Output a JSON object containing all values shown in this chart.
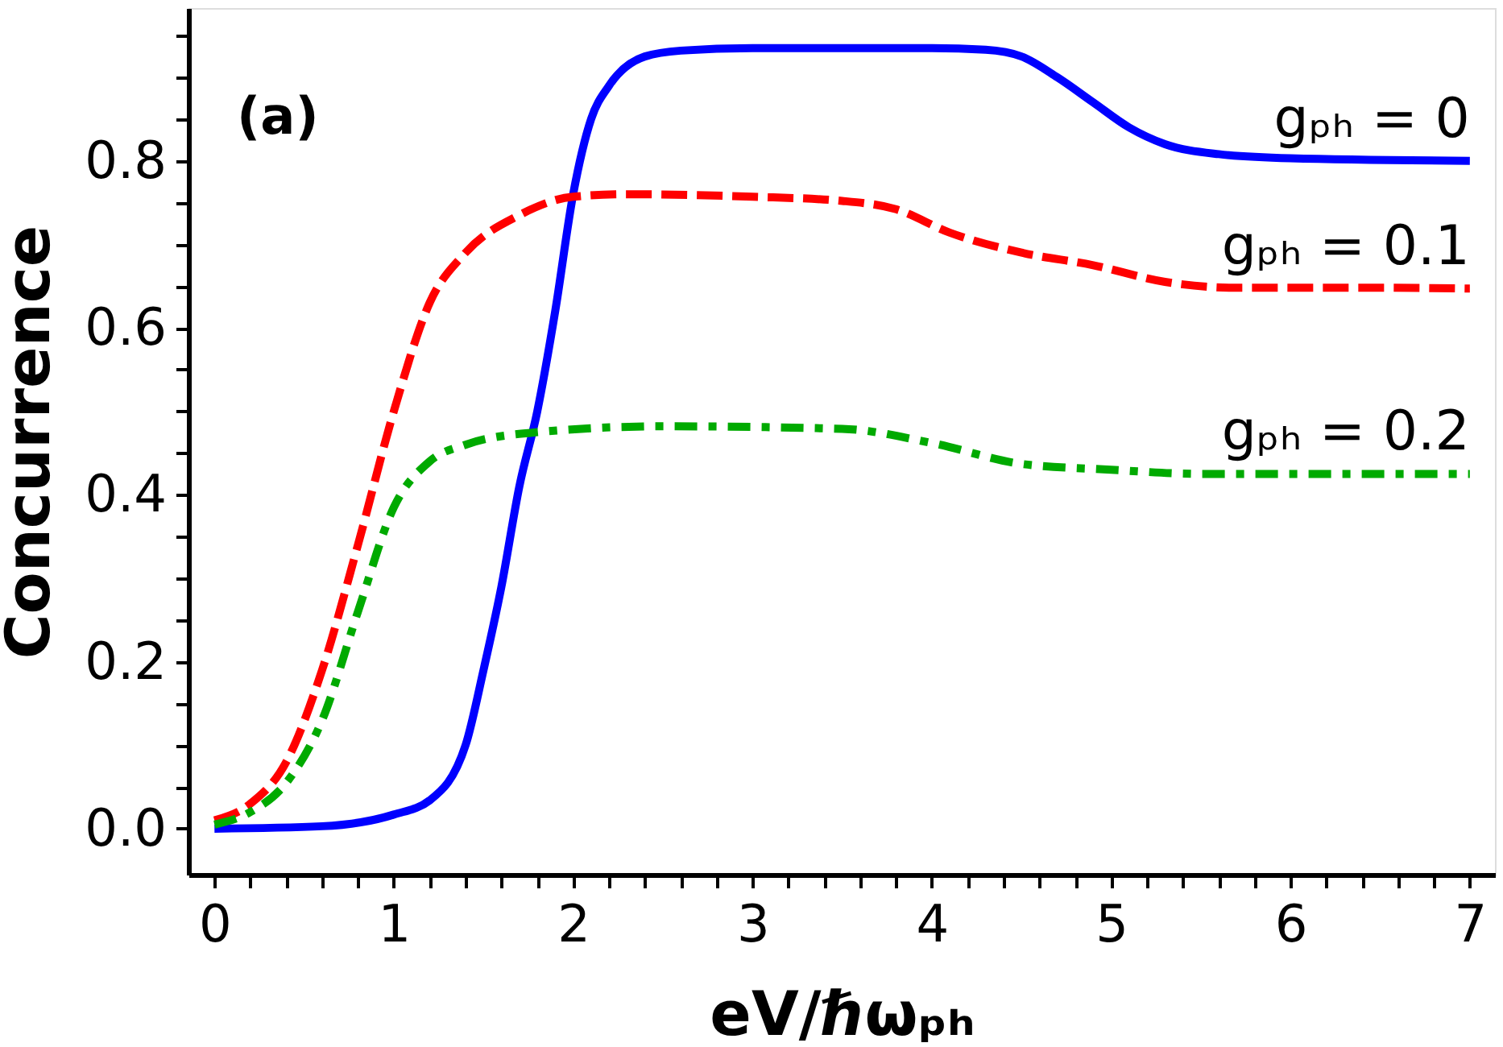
{
  "chart_data": {
    "type": "line",
    "xlabel": "eV/ℏωₚₕ",
    "ylabel": "Concurrence",
    "annotations": [
      "(a)"
    ],
    "xlim": [
      -0.145,
      7.14
    ],
    "ylim": [
      -0.055,
      0.983
    ],
    "xticks": [
      0,
      {
        "value": 0.2,
        "label": null
      },
      {
        "value": 0.4,
        "label": null
      },
      {
        "value": 0.6,
        "label": null
      },
      {
        "value": 0.8,
        "label": null
      },
      1,
      {
        "value": 1.2,
        "label": null
      },
      {
        "value": 1.4,
        "label": null
      },
      {
        "value": 1.6,
        "label": null
      },
      {
        "value": 1.8,
        "label": null
      },
      2,
      {
        "value": 2.2,
        "label": null
      },
      {
        "value": 2.4,
        "label": null
      },
      {
        "value": 2.6,
        "label": null
      },
      {
        "value": 2.8,
        "label": null
      },
      3,
      {
        "value": 3.2,
        "label": null
      },
      {
        "value": 3.4,
        "label": null
      },
      {
        "value": 3.6,
        "label": null
      },
      {
        "value": 3.8,
        "label": null
      },
      4,
      {
        "value": 4.2,
        "label": null
      },
      {
        "value": 4.4,
        "label": null
      },
      {
        "value": 4.6,
        "label": null
      },
      {
        "value": 4.8,
        "label": null
      },
      5,
      {
        "value": 5.2,
        "label": null
      },
      {
        "value": 5.4,
        "label": null
      },
      {
        "value": 5.6,
        "label": null
      },
      {
        "value": 5.8,
        "label": null
      },
      6,
      {
        "value": 6.2,
        "label": null
      },
      {
        "value": 6.4,
        "label": null
      },
      {
        "value": 6.6,
        "label": null
      },
      {
        "value": 6.8,
        "label": null
      },
      7
    ],
    "yticks": [
      {
        "value": 0,
        "label": "0.0"
      },
      {
        "value": 0.05,
        "label": null
      },
      {
        "value": 0.1,
        "label": null
      },
      {
        "value": 0.15,
        "label": null
      },
      0.2,
      {
        "value": 0.25,
        "label": null
      },
      {
        "value": 0.3,
        "label": null
      },
      {
        "value": 0.35,
        "label": null
      },
      0.4,
      {
        "value": 0.45,
        "label": null
      },
      {
        "value": 0.5,
        "label": null
      },
      {
        "value": 0.55,
        "label": null
      },
      0.6,
      {
        "value": 0.65,
        "label": null
      },
      {
        "value": 0.7,
        "label": null
      },
      {
        "value": 0.75,
        "label": null
      },
      0.8,
      {
        "value": 0.85,
        "label": null
      },
      {
        "value": 0.9,
        "label": null
      },
      {
        "value": 0.95,
        "label": null
      }
    ],
    "grid": false,
    "marker": "none",
    "series": [
      {
        "name": "gₚₕ = 0",
        "color": "#0000ff",
        "line_style": "solid",
        "x": [
          0,
          0.6,
          1.0,
          1.2,
          1.4,
          1.5,
          1.6,
          1.7,
          1.8,
          1.9,
          2.0,
          2.1,
          2.2,
          2.4,
          2.6,
          3.0,
          4.0,
          4.3,
          4.5,
          4.7,
          4.9,
          5.1,
          5.3,
          5.6,
          6.0,
          7.0
        ],
        "values": [
          0.0,
          0.003,
          0.017,
          0.034,
          0.1,
          0.19,
          0.29,
          0.41,
          0.5,
          0.62,
          0.76,
          0.85,
          0.89,
          0.925,
          0.932,
          0.935,
          0.935,
          0.933,
          0.925,
          0.9,
          0.87,
          0.84,
          0.82,
          0.808,
          0.803,
          0.8
        ]
      },
      {
        "name": "gₚₕ = 0.1",
        "color": "#ff0000",
        "line_style": "dashed",
        "x": [
          0,
          0.2,
          0.4,
          0.6,
          0.8,
          1.0,
          1.2,
          1.4,
          1.7,
          2.0,
          2.3,
          3.0,
          3.5,
          3.8,
          4.1,
          4.5,
          4.9,
          5.3,
          5.7,
          6.5,
          7.0
        ],
        "values": [
          0.01,
          0.03,
          0.08,
          0.19,
          0.34,
          0.5,
          0.63,
          0.69,
          0.735,
          0.757,
          0.76,
          0.757,
          0.752,
          0.742,
          0.714,
          0.69,
          0.675,
          0.655,
          0.648,
          0.648,
          0.647
        ]
      },
      {
        "name": "gₚₕ = 0.2",
        "color": "#00aa00",
        "line_style": "dashdot",
        "x": [
          0,
          0.2,
          0.4,
          0.6,
          0.8,
          1.0,
          1.2,
          1.4,
          1.8,
          2.5,
          3.5,
          4.0,
          4.5,
          5.0,
          5.5,
          6.0,
          7.0
        ],
        "values": [
          0.005,
          0.02,
          0.055,
          0.13,
          0.26,
          0.385,
          0.44,
          0.46,
          0.475,
          0.482,
          0.479,
          0.462,
          0.437,
          0.43,
          0.425,
          0.425,
          0.425
        ]
      }
    ]
  }
}
